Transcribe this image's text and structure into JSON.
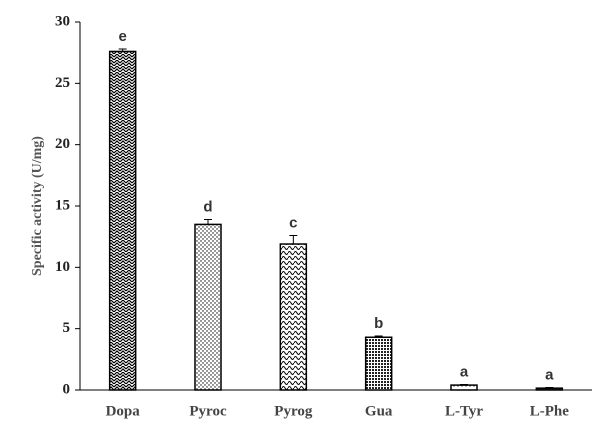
{
  "chart_data": {
    "type": "bar",
    "y_label": "Specific activity (U/mg)",
    "categories": [
      "Dopa",
      "Pyroc",
      "Pyrog",
      "Gua",
      "L-Tyr",
      "L-Phe"
    ],
    "values": [
      27.6,
      13.5,
      11.9,
      4.3,
      0.4,
      0.15
    ],
    "errors": [
      0.2,
      0.4,
      0.7,
      0.1,
      0.05,
      0.05
    ],
    "annotations": [
      "e",
      "d",
      "c",
      "b",
      "a",
      "a"
    ],
    "color": "#000000",
    "ylim": [
      0,
      30
    ],
    "yticks": [
      0,
      5,
      10,
      15,
      20,
      25,
      30
    ],
    "grid": false
  }
}
